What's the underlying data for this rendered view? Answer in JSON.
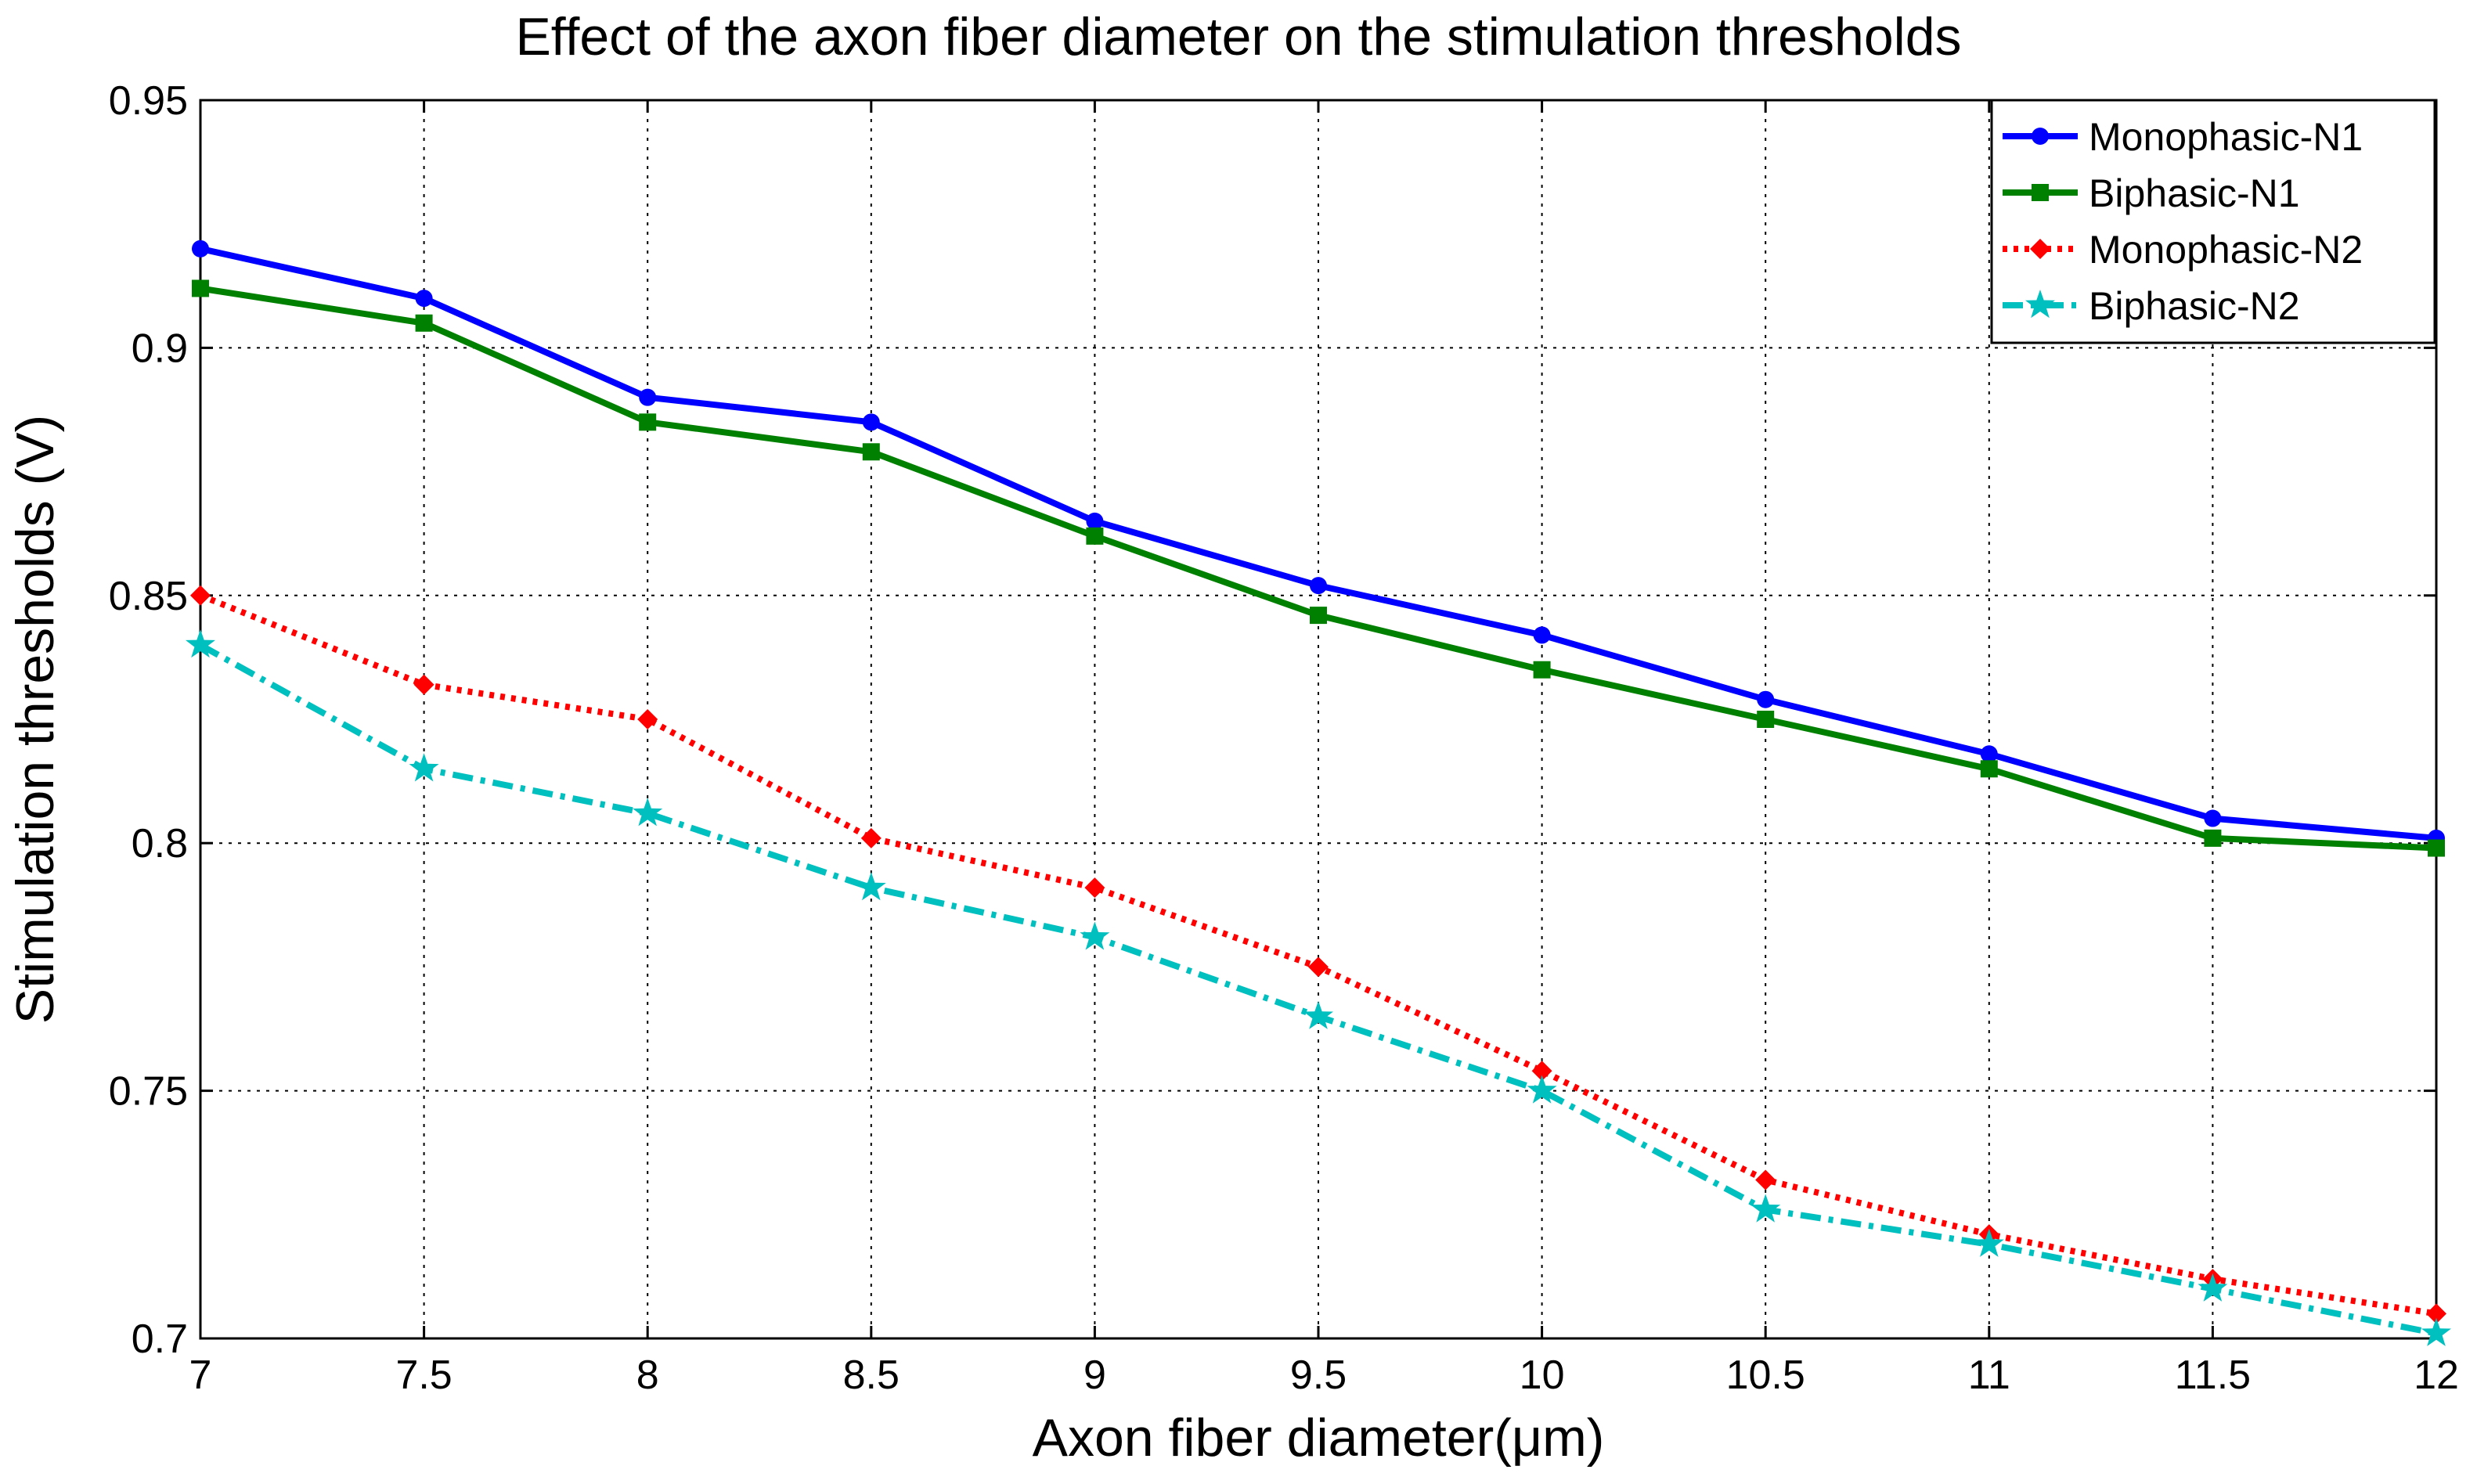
{
  "chart_data": {
    "type": "line",
    "title": "Effect of the axon fiber diameter on the stimulation thresholds",
    "xlabel": "Axon fiber diameter(μm)",
    "ylabel": "Stimulation thresholds (V)",
    "xlim": [
      7,
      12
    ],
    "ylim": [
      0.7,
      0.95
    ],
    "xticks": [
      7,
      7.5,
      8,
      8.5,
      9,
      9.5,
      10,
      10.5,
      11,
      11.5,
      12
    ],
    "xtick_labels": [
      "7",
      "7.5",
      "8",
      "8.5",
      "9",
      "9.5",
      "10",
      "10.5",
      "11",
      "11.5",
      "12"
    ],
    "yticks": [
      0.7,
      0.75,
      0.8,
      0.85,
      0.9,
      0.95
    ],
    "ytick_labels": [
      "0.7",
      "0.75",
      "0.8",
      "0.85",
      "0.9",
      "0.95"
    ],
    "grid": true,
    "legend_position": "top-right",
    "x": [
      7,
      7.5,
      8,
      8.5,
      9,
      9.5,
      10,
      10.5,
      11,
      11.5,
      12
    ],
    "series": [
      {
        "name": "Monophasic-N1",
        "color": "#0000ff",
        "line_style": "solid",
        "marker": "circle",
        "values": [
          0.92,
          0.91,
          0.89,
          0.885,
          0.865,
          0.852,
          0.842,
          0.829,
          0.818,
          0.805,
          0.801
        ]
      },
      {
        "name": "Biphasic-N1",
        "color": "#008000",
        "line_style": "solid",
        "marker": "square",
        "values": [
          0.912,
          0.905,
          0.885,
          0.879,
          0.862,
          0.846,
          0.835,
          0.825,
          0.815,
          0.801,
          0.799
        ]
      },
      {
        "name": "Monophasic-N2",
        "color": "#ff0000",
        "line_style": "dotted",
        "marker": "diamond",
        "values": [
          0.85,
          0.832,
          0.825,
          0.801,
          0.791,
          0.775,
          0.754,
          0.732,
          0.721,
          0.712,
          0.705
        ]
      },
      {
        "name": "Biphasic-N2",
        "color": "#00bfbf",
        "line_style": "dashdot",
        "marker": "star",
        "values": [
          0.84,
          0.815,
          0.806,
          0.791,
          0.781,
          0.765,
          0.75,
          0.726,
          0.719,
          0.71,
          0.701
        ]
      }
    ]
  }
}
